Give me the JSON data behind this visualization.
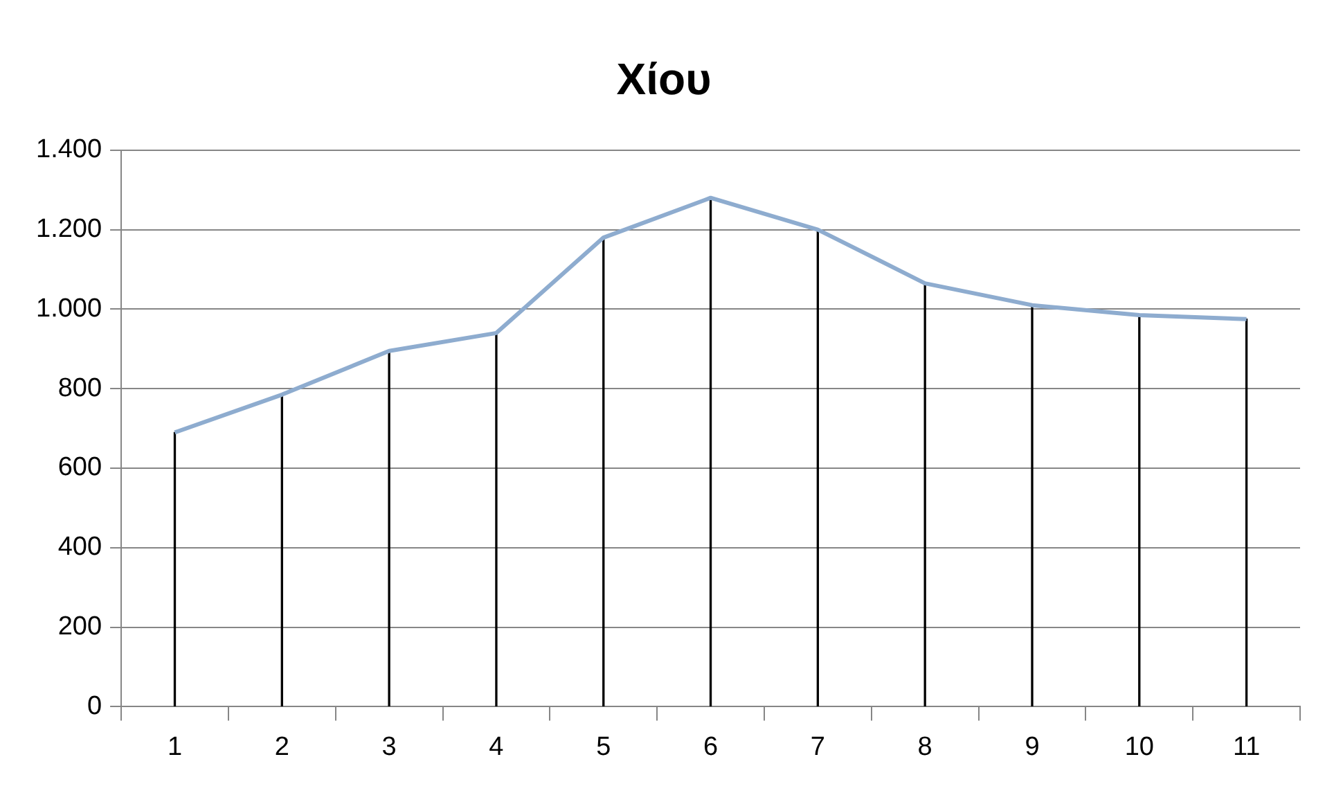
{
  "chart_data": {
    "type": "line",
    "title": "Χίου",
    "categories": [
      "1",
      "2",
      "3",
      "4",
      "5",
      "6",
      "7",
      "8",
      "9",
      "10",
      "11"
    ],
    "series": [
      {
        "color": "#8eaccf",
        "values": [
          690,
          785,
          895,
          940,
          1180,
          1280,
          1200,
          1065,
          1010,
          985,
          975
        ]
      },
      {
        "type": "bar",
        "color": "#000000",
        "values": [
          690,
          785,
          895,
          940,
          1180,
          1280,
          1200,
          1065,
          1010,
          985,
          975
        ]
      }
    ],
    "ylim": [
      0,
      1400
    ],
    "yticks": [
      {
        "value": 0,
        "label": "0"
      },
      {
        "value": 200,
        "label": "200"
      },
      {
        "value": 400,
        "label": "400"
      },
      {
        "value": 600,
        "label": "600"
      },
      {
        "value": 800,
        "label": "800"
      },
      {
        "value": 1000,
        "label": "1.000"
      },
      {
        "value": 1200,
        "label": "1.200"
      },
      {
        "value": 1400,
        "label": "1.400"
      }
    ],
    "grid": "y",
    "legend": false,
    "marker": "none",
    "line_style": "solid"
  }
}
